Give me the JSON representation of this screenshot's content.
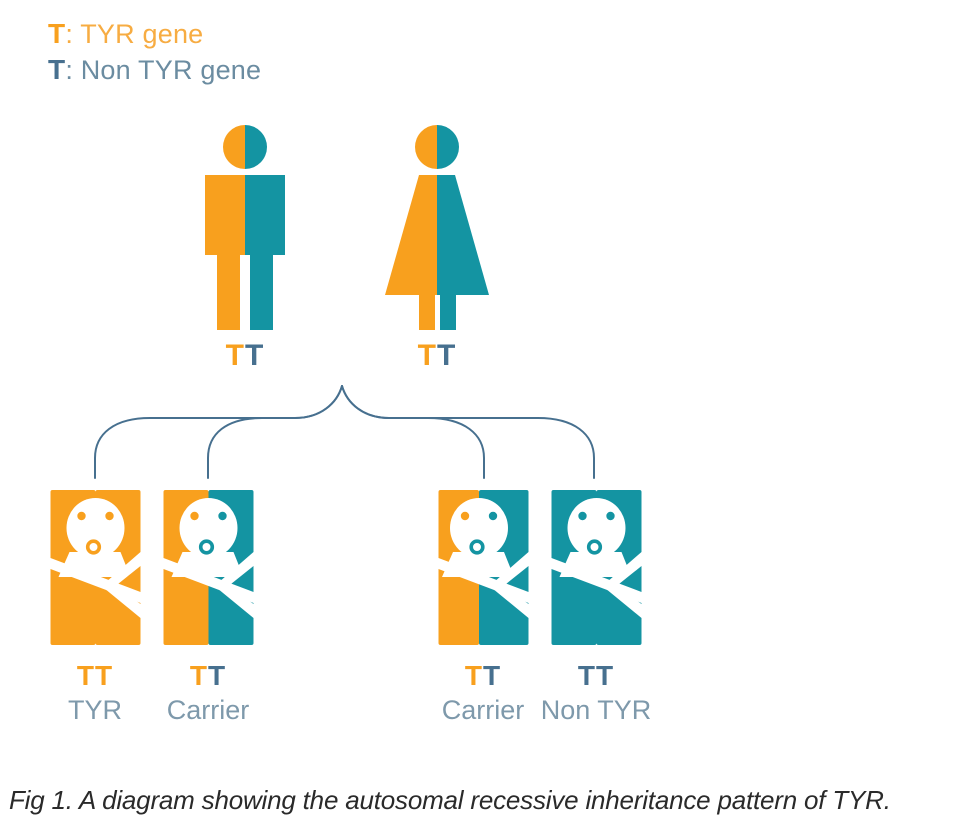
{
  "colors": {
    "orange": "#F8A01E",
    "teal": "#1494A2",
    "slate": "#47708F",
    "label": "#7E99AB",
    "legend_orange": "#F7AC42",
    "legend_gray": "#6B8CA1",
    "connector": "#47708F",
    "caption": "#2A2A2A",
    "white": "#FFFFFF"
  },
  "legend": {
    "items": [
      {
        "allele": "T",
        "text": ": TYR gene",
        "allele_color": "orange",
        "text_color": "legend_orange"
      },
      {
        "allele": "T",
        "text": ": Non TYR gene",
        "allele_color": "slate",
        "text_color": "legend_gray"
      }
    ]
  },
  "parents": [
    {
      "icon": "male-figure-icon",
      "sex": "male",
      "halves": [
        "orange",
        "teal"
      ],
      "genotype": [
        {
          "letter": "T",
          "color": "orange"
        },
        {
          "letter": "T",
          "color": "slate"
        }
      ]
    },
    {
      "icon": "female-figure-icon",
      "sex": "female",
      "halves": [
        "orange",
        "teal"
      ],
      "genotype": [
        {
          "letter": "T",
          "color": "orange"
        },
        {
          "letter": "T",
          "color": "slate"
        }
      ]
    }
  ],
  "children": [
    {
      "icon": "baby-icon",
      "halves": [
        "orange",
        "orange"
      ],
      "split": 0.5,
      "eyes": [
        "orange",
        "orange"
      ],
      "mouth": "orange",
      "genotype": [
        {
          "letter": "T",
          "color": "orange"
        },
        {
          "letter": "T",
          "color": "orange"
        }
      ],
      "label": "TYR"
    },
    {
      "icon": "baby-icon",
      "halves": [
        "orange",
        "teal"
      ],
      "split": 0.5,
      "eyes": [
        "orange",
        "teal"
      ],
      "mouth": "teal",
      "genotype": [
        {
          "letter": "T",
          "color": "orange"
        },
        {
          "letter": "T",
          "color": "slate"
        }
      ],
      "label": "Carrier"
    },
    {
      "icon": "baby-icon",
      "halves": [
        "orange",
        "teal"
      ],
      "split": 0.45,
      "eyes": [
        "orange",
        "teal"
      ],
      "mouth": "teal",
      "genotype": [
        {
          "letter": "T",
          "color": "orange"
        },
        {
          "letter": "T",
          "color": "slate"
        }
      ],
      "label": "Carrier"
    },
    {
      "icon": "baby-icon",
      "halves": [
        "teal",
        "teal"
      ],
      "split": 0.5,
      "eyes": [
        "teal",
        "teal"
      ],
      "mouth": "teal",
      "genotype": [
        {
          "letter": "T",
          "color": "slate"
        },
        {
          "letter": "T",
          "color": "slate"
        }
      ],
      "label": "Non TYR"
    }
  ],
  "caption": "Fig 1. A diagram showing the autosomal recessive inheritance pattern of TYR."
}
